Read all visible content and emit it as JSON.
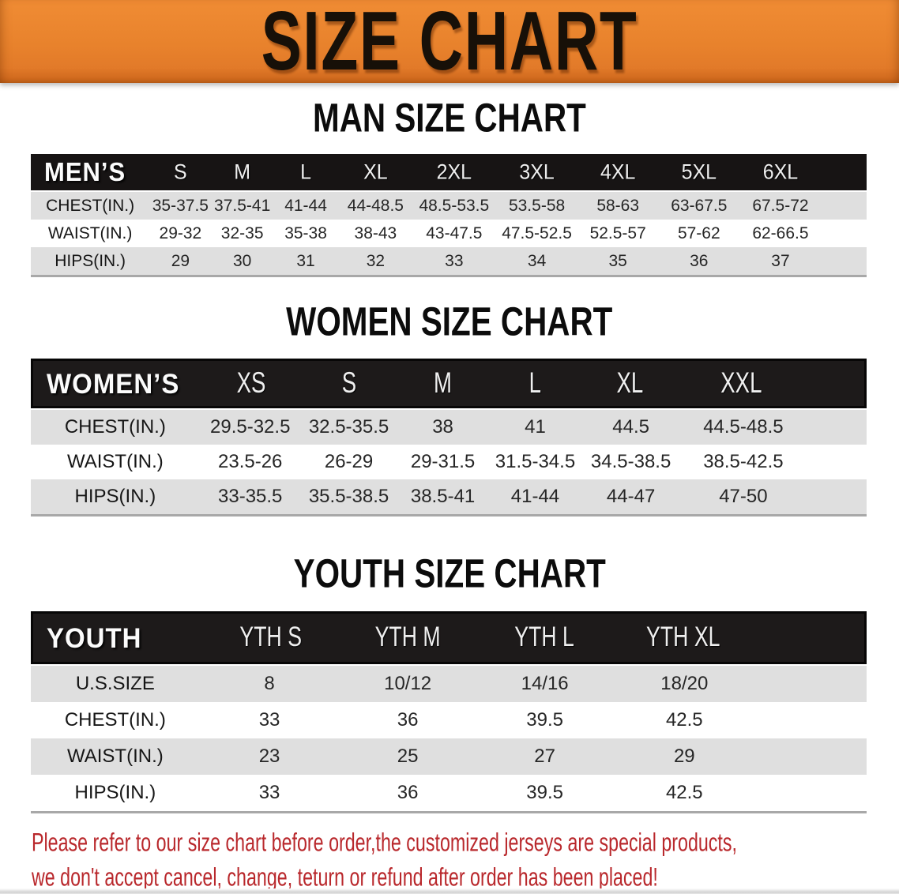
{
  "banner": {
    "title": "SIZE CHART",
    "bg_color": "#e8822c",
    "text_color": "#171008"
  },
  "sections": [
    {
      "id": "men",
      "title": "MAN SIZE CHART",
      "table": {
        "label": "MEN’S",
        "columns": [
          "S",
          "M",
          "L",
          "XL",
          "2XL",
          "3XL",
          "4XL",
          "5XL",
          "6XL"
        ],
        "rows": [
          {
            "label": "CHEST(IN.)",
            "values": [
              "35-37.5",
              "37.5-41",
              "41-44",
              "44-48.5",
              "48.5-53.5",
              "53.5-58",
              "58-63",
              "63-67.5",
              "67.5-72"
            ]
          },
          {
            "label": "WAIST(IN.)",
            "values": [
              "29-32",
              "32-35",
              "35-38",
              "38-43",
              "43-47.5",
              "47.5-52.5",
              "52.5-57",
              "57-62",
              "62-66.5"
            ]
          },
          {
            "label": "HIPS(IN.)",
            "values": [
              "29",
              "30",
              "31",
              "32",
              "33",
              "34",
              "35",
              "36",
              "37"
            ]
          }
        ]
      }
    },
    {
      "id": "women",
      "title": "WOMEN SIZE CHART",
      "table": {
        "label": "WOMEN’S",
        "columns": [
          "XS",
          "S",
          "M",
          "L",
          "XL",
          "XXL"
        ],
        "rows": [
          {
            "label": "CHEST(IN.)",
            "values": [
              "29.5-32.5",
              "32.5-35.5",
              "38",
              "41",
              "44.5",
              "44.5-48.5"
            ]
          },
          {
            "label": "WAIST(IN.)",
            "values": [
              "23.5-26",
              "26-29",
              "29-31.5",
              "31.5-34.5",
              "34.5-38.5",
              "38.5-42.5"
            ]
          },
          {
            "label": "HIPS(IN.)",
            "values": [
              "33-35.5",
              "35.5-38.5",
              "38.5-41",
              "41-44",
              "44-47",
              "47-50"
            ]
          }
        ]
      }
    },
    {
      "id": "youth",
      "title": "YOUTH SIZE CHART",
      "table": {
        "label": "YOUTH",
        "columns": [
          "YTH S",
          "YTH M",
          "YTH L",
          "YTH XL"
        ],
        "rows": [
          {
            "label": "U.S.SIZE",
            "values": [
              "8",
              "10/12",
              "14/16",
              "18/20"
            ]
          },
          {
            "label": "CHEST(IN.)",
            "values": [
              "33",
              "36",
              "39.5",
              "42.5"
            ]
          },
          {
            "label": "WAIST(IN.)",
            "values": [
              "23",
              "25",
              "27",
              "29"
            ]
          },
          {
            "label": "HIPS(IN.)",
            "values": [
              "33",
              "36",
              "39.5",
              "42.5"
            ]
          }
        ]
      }
    }
  ],
  "footer": {
    "color": "#b9282c",
    "lines": [
      "Please refer to our size chart before order,the customized jerseys are special products,",
      "we don't accept cancel, change, teturn or refund after order has been placed!"
    ]
  }
}
